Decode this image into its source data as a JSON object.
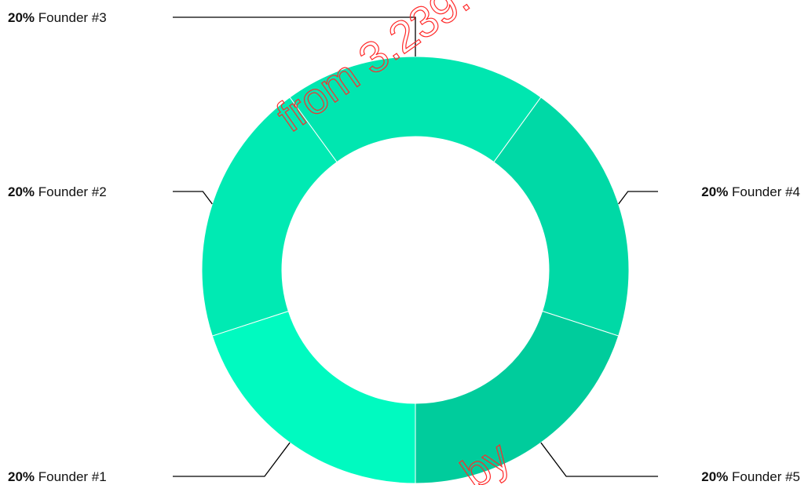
{
  "chart_data": {
    "type": "pie",
    "variant": "donut",
    "categories": [
      "Founder #1",
      "Founder #2",
      "Founder #3",
      "Founder #4",
      "Founder #5"
    ],
    "values": [
      20,
      20,
      20,
      20,
      20
    ],
    "value_labels": [
      "20%",
      "20%",
      "20%",
      "20%",
      "20%"
    ],
    "colors": [
      "#00FAC0",
      "#00EAB3",
      "#00E6B0",
      "#00D9A6",
      "#00CC9C"
    ],
    "legend": "none",
    "labels": "outside with leader lines"
  },
  "watermark": {
    "top_text": "from 3.239.",
    "bottom_text": "by",
    "color": "#ff2a2a"
  }
}
